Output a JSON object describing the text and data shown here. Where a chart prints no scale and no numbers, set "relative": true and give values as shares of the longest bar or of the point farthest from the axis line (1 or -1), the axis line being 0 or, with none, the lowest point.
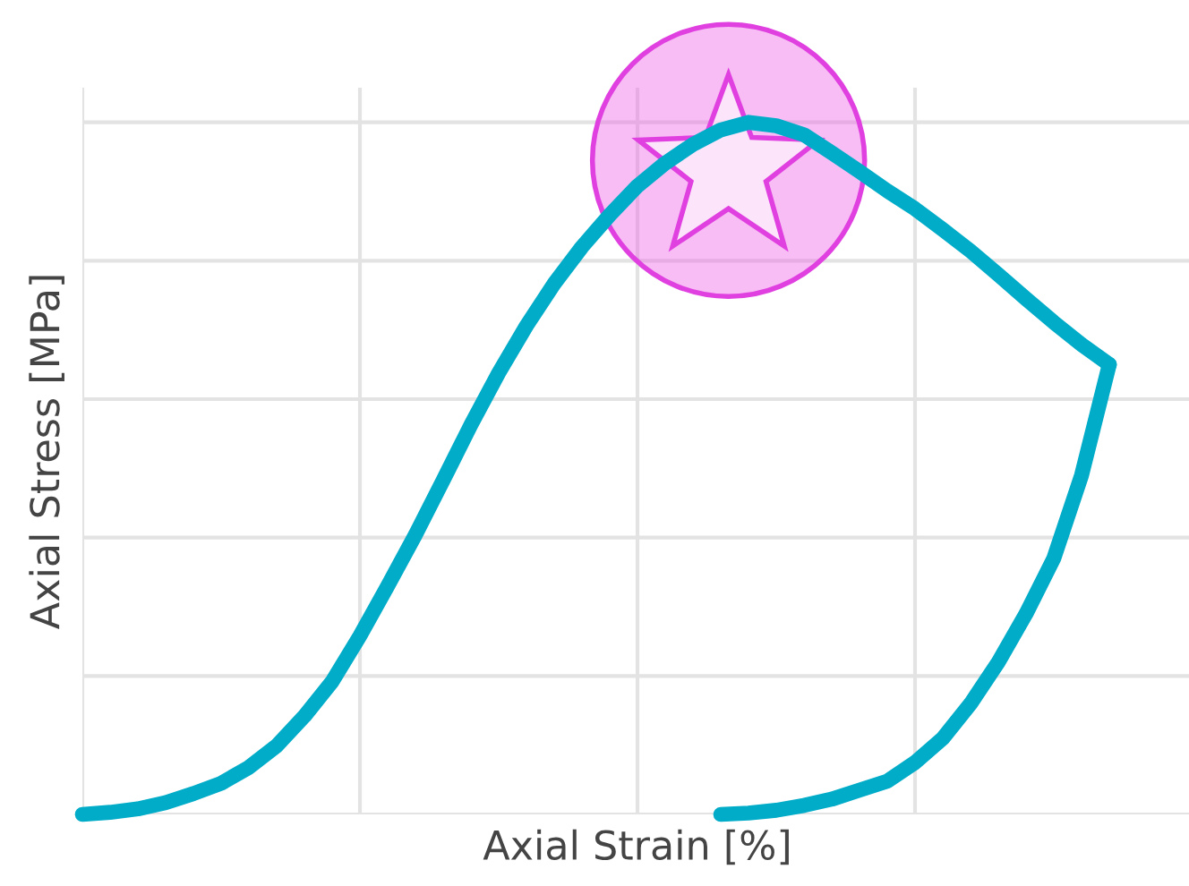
{
  "chart_data": {
    "type": "line",
    "relative": true,
    "xlabel": "Axial Strain [%]",
    "ylabel": "Axial Stress [MPa]",
    "grid": true,
    "tick_labels": false,
    "categories": [
      null,
      null,
      null,
      null,
      null,
      null,
      null,
      null,
      null,
      null,
      null,
      null,
      null,
      null,
      null,
      null,
      null,
      null,
      null,
      null,
      null,
      null,
      null,
      null,
      null,
      null,
      null,
      null,
      null,
      null,
      null,
      null,
      null,
      null,
      null,
      null,
      null,
      null,
      null,
      null,
      null
    ],
    "series": [
      {
        "color": "#00acc8",
        "values": [
          0,
          0.003,
          0.008,
          0.017,
          0.03,
          0.045,
          0.068,
          0.099,
          0.142,
          0.192,
          0.258,
          0.33,
          0.404,
          0.483,
          0.563,
          0.638,
          0.706,
          0.767,
          0.82,
          0.866,
          0.908,
          0.941,
          0.968,
          0.989,
          1,
          0.995,
          0.982,
          0.956,
          0.929,
          0.901,
          0.875,
          0.845,
          0.814,
          0.78,
          0.745,
          0.711,
          0.679,
          0.65,
          null,
          null,
          null
        ]
      },
      {
        "color": "#00acc8",
        "values": [
          null,
          null,
          null,
          null,
          null,
          null,
          null,
          null,
          null,
          null,
          null,
          null,
          null,
          null,
          null,
          null,
          null,
          null,
          null,
          null,
          null,
          null,
          null,
          0,
          0.002,
          0.006,
          0.013,
          0.022,
          0.035,
          0.048,
          0.075,
          0.11,
          0.16,
          0.22,
          0.29,
          0.37,
          0.49,
          0.65,
          null,
          null,
          null
        ]
      }
    ]
  }
}
